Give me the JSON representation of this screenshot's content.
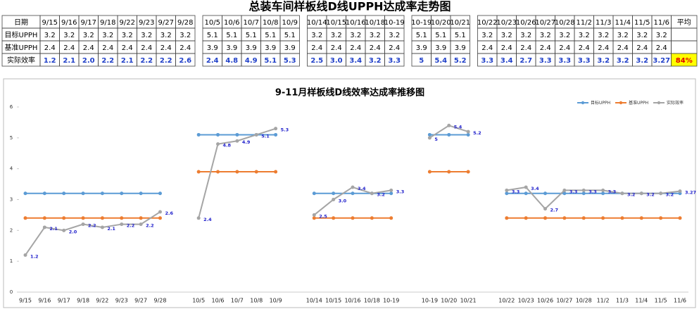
{
  "title": "总装车间样板线D线UPPH达成率走势图",
  "table": {
    "header": [
      "日期",
      "9/15",
      "9/16",
      "9/17",
      "9/18",
      "9/22",
      "9/23",
      "9/27",
      "9/28",
      "10/5",
      "10/6",
      "10/7",
      "10/8",
      "10/9",
      "10/14",
      "10/15",
      "10/16",
      "10/18",
      "10-19",
      "10-19",
      "10/20",
      "10/21",
      "10/22",
      "10/23",
      "10/26",
      "10/27",
      "10/28",
      "11/2",
      "11/3",
      "11/4",
      "11/5",
      "11/6",
      "平均"
    ],
    "rows": [
      {
        "label": "目标UPPH",
        "cells": [
          "3.2",
          "3.2",
          "3.2",
          "3.2",
          "3.2",
          "3.2",
          "3.2",
          "3.2",
          "5.1",
          "5.1",
          "5.1",
          "5.1",
          "5.1",
          "3.2",
          "3.2",
          "3.2",
          "3.2",
          "3.2",
          "5.1",
          "5.1",
          "5.1",
          "3.2",
          "3.2",
          "3.2",
          "3.2",
          "3.2",
          "3.2",
          "3.2",
          "3.2",
          "3.2",
          "3.2"
        ]
      },
      {
        "label": "基准UPPH",
        "cells": [
          "2.4",
          "2.4",
          "2.4",
          "2.4",
          "2.4",
          "2.4",
          "2.4",
          "2.4",
          "3.9",
          "3.9",
          "3.9",
          "3.9",
          "3.9",
          "2.4",
          "2.4",
          "2.4",
          "2.4",
          "2.4",
          "3.9",
          "3.9",
          "3.9",
          "2.4",
          "2.4",
          "2.4",
          "2.4",
          "2.4",
          "2.4",
          "2.4",
          "2.4",
          "2.4",
          "2.4"
        ]
      },
      {
        "label": "实际效率",
        "cells": [
          "1.2",
          "2.1",
          "2.0",
          "2.2",
          "2.1",
          "2.2",
          "2.2",
          "2.6",
          "2.4",
          "4.8",
          "4.9",
          "5.1",
          "5.3",
          "2.5",
          "3.0",
          "3.4",
          "3.2",
          "3.3",
          "5",
          "5.4",
          "5.2",
          "3.3",
          "3.4",
          "2.7",
          "3.3",
          "3.3",
          "3.3",
          "3.2",
          "3.2",
          "3.2",
          "3.27"
        ],
        "average": "84%"
      }
    ]
  },
  "chart_data": {
    "type": "line",
    "title": "9-11月样板线D线效率达成率推移图",
    "categories": [
      "9/15",
      "9/16",
      "9/17",
      "9/18",
      "9/22",
      "9/23",
      "9/27",
      "9/28",
      null,
      "10/5",
      "10/6",
      "10/7",
      "10/8",
      "10/9",
      null,
      "10/14",
      "10/15",
      "10/16",
      "10/18",
      "10-19",
      null,
      "10-19",
      "10/20",
      "10/21",
      null,
      "10/22",
      "10/23",
      "10/26",
      "10/27",
      "10/28",
      "11/2",
      "11/3",
      "11/4",
      "11/5",
      "11/6"
    ],
    "ylim": [
      0,
      6
    ],
    "yticks": [
      0,
      1,
      2,
      3,
      4,
      5,
      6
    ],
    "legend": "top-right",
    "series": [
      {
        "name": "目标UPPH",
        "color": "#5b9bd5",
        "values": [
          3.2,
          3.2,
          3.2,
          3.2,
          3.2,
          3.2,
          3.2,
          3.2,
          null,
          5.1,
          5.1,
          5.1,
          5.1,
          5.1,
          null,
          3.2,
          3.2,
          3.2,
          3.2,
          3.2,
          null,
          5.1,
          5.1,
          5.1,
          null,
          3.2,
          3.2,
          3.2,
          3.2,
          3.2,
          3.2,
          3.2,
          3.2,
          3.2,
          3.2
        ]
      },
      {
        "name": "基准UPPH",
        "color": "#ed7d31",
        "values": [
          2.4,
          2.4,
          2.4,
          2.4,
          2.4,
          2.4,
          2.4,
          2.4,
          null,
          3.9,
          3.9,
          3.9,
          3.9,
          3.9,
          null,
          2.4,
          2.4,
          2.4,
          2.4,
          2.4,
          null,
          3.9,
          3.9,
          3.9,
          null,
          2.4,
          2.4,
          2.4,
          2.4,
          2.4,
          2.4,
          2.4,
          2.4,
          2.4,
          2.4
        ]
      },
      {
        "name": "实际效率",
        "color": "#a5a5a5",
        "values": [
          1.2,
          2.1,
          2.0,
          2.2,
          2.1,
          2.2,
          2.2,
          2.6,
          null,
          2.4,
          4.8,
          4.9,
          5.1,
          5.3,
          null,
          2.5,
          3.0,
          3.4,
          3.2,
          3.3,
          null,
          5,
          5.4,
          5.2,
          null,
          3.3,
          3.4,
          2.7,
          3.3,
          3.3,
          3.3,
          3.2,
          3.2,
          3.2,
          3.27
        ],
        "value_labels": [
          "1.2",
          "2.1",
          "2.0",
          "2.2",
          "2.1",
          "2.2",
          "2.2",
          "2.6",
          null,
          "2.4",
          "4.8",
          "4.9",
          "5.1",
          "5.3",
          null,
          "2.5",
          "3.0",
          "3.4",
          "3.2",
          "3.3",
          null,
          "5",
          "5.4",
          "5.2",
          null,
          "3.3",
          "3.4",
          "2.7",
          "3.3",
          "3.3",
          "3.3",
          "3.2",
          "3.2",
          "3.2",
          "3.27"
        ]
      }
    ]
  }
}
